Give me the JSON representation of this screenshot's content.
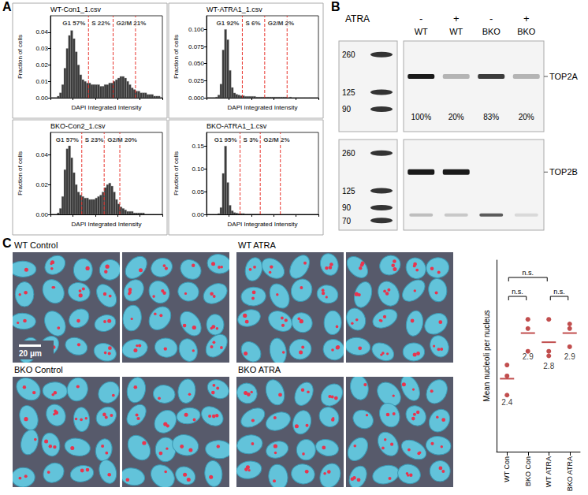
{
  "panel_letters": [
    "A",
    "B",
    "C"
  ],
  "chart_data": [
    {
      "type": "histogram",
      "title": "WT-Con1_1.csv",
      "xlabel": "DAPI Integrated Intensity",
      "ylabel": "Fraction of cells",
      "bins": [
        0,
        1,
        2,
        3,
        4,
        5,
        6,
        7,
        8,
        9,
        10,
        11,
        12,
        13,
        14,
        15,
        16,
        17,
        18,
        19,
        20,
        21,
        22,
        23,
        24,
        25,
        26,
        27,
        28,
        29,
        30,
        31,
        32,
        33,
        34,
        35,
        36,
        37,
        38,
        39,
        40,
        41,
        42,
        43,
        44,
        45,
        46,
        47,
        48,
        49,
        50
      ],
      "values": [
        0,
        0,
        0,
        0.001,
        0.003,
        0.008,
        0.018,
        0.03,
        0.038,
        0.041,
        0.036,
        0.028,
        0.02,
        0.014,
        0.011,
        0.01,
        0.009,
        0.009,
        0.008,
        0.008,
        0.008,
        0.008,
        0.007,
        0.007,
        0.008,
        0.008,
        0.009,
        0.009,
        0.01,
        0.011,
        0.012,
        0.013,
        0.013,
        0.012,
        0.01,
        0.008,
        0.006,
        0.005,
        0.004,
        0.004,
        0.003,
        0.003,
        0.003,
        0.002,
        0.002,
        0.002,
        0.001,
        0.001,
        0.001,
        0
      ],
      "color": "#3a3a3a",
      "xlim": [
        0,
        50
      ],
      "xticks": [
        0,
        10,
        20,
        30,
        40,
        50
      ],
      "ylim": [
        0,
        0.05
      ],
      "yticks": [
        {
          "value": 0,
          "label": "0.00"
        },
        0.01,
        0.02,
        0.03,
        0.04
      ],
      "tick_labels": "y",
      "grid": false,
      "gates": {
        "x": [
          17,
          28,
          38
        ],
        "color": "#e8352e",
        "line_style": "dashed"
      },
      "annotations": [
        "G1 57%",
        "S 22%",
        "G2/M 21%"
      ]
    },
    {
      "type": "histogram",
      "title": "WT-ATRA1_1.csv",
      "xlabel": "DAPI Integrated Intensity",
      "ylabel": "Fraction of cells",
      "bins": [
        0,
        1,
        2,
        3,
        4,
        5,
        6,
        7,
        8,
        9,
        10,
        11,
        12,
        13,
        14,
        15,
        16,
        17,
        18,
        19,
        20,
        21,
        22,
        23,
        24,
        25,
        26,
        27,
        28,
        29,
        30,
        31,
        32,
        33,
        34,
        35,
        36,
        37,
        38,
        39,
        40,
        41,
        42,
        43,
        44,
        45,
        46,
        47,
        48,
        49,
        50
      ],
      "values": [
        0,
        0,
        0,
        0,
        0.001,
        0.004,
        0.02,
        0.07,
        0.1,
        0.085,
        0.04,
        0.015,
        0.007,
        0.005,
        0.004,
        0.003,
        0.003,
        0.002,
        0.002,
        0.002,
        0.002,
        0.002,
        0.001,
        0.001,
        0.001,
        0.001,
        0.001,
        0.001,
        0.001,
        0.001,
        0.001,
        0.001,
        0.001,
        0.001,
        0.001,
        0.001,
        0,
        0.001,
        0,
        0,
        0,
        0,
        0,
        0,
        0,
        0,
        0,
        0,
        0,
        0
      ],
      "color": "#3a3a3a",
      "xlim": [
        0,
        50
      ],
      "xticks": [
        0,
        10,
        20,
        30,
        40,
        50
      ],
      "ylim": [
        0,
        0.12
      ],
      "yticks": [
        {
          "value": 0,
          "label": "0.000"
        },
        0.025,
        {
          "value": 0.05,
          "label": "0.050"
        },
        0.075,
        {
          "value": 0.1,
          "label": "0.100"
        }
      ],
      "tick_labels": "y",
      "grid": false,
      "gates": {
        "x": [
          16,
          26,
          36
        ],
        "color": "#e8352e",
        "line_style": "dashed"
      },
      "annotations": [
        "G1 92%",
        "S 6%",
        "G2/M 2%"
      ]
    },
    {
      "type": "histogram",
      "title": "BKO-Con2_1.csv",
      "xlabel": "DAPI Integrated Intensity",
      "ylabel": "Fraction of cells",
      "bins": [
        0,
        1,
        2,
        3,
        4,
        5,
        6,
        7,
        8,
        9,
        10,
        11,
        12,
        13,
        14,
        15,
        16,
        17,
        18,
        19,
        20,
        21,
        22,
        23,
        24,
        25,
        26,
        27,
        28,
        29,
        30,
        31,
        32,
        33,
        34,
        35,
        36,
        37,
        38,
        39,
        40,
        41,
        42,
        43,
        44,
        45,
        46,
        47,
        48,
        49,
        50
      ],
      "values": [
        0,
        0,
        0,
        0.001,
        0.004,
        0.012,
        0.03,
        0.044,
        0.046,
        0.038,
        0.028,
        0.02,
        0.015,
        0.013,
        0.012,
        0.011,
        0.011,
        0.01,
        0.01,
        0.01,
        0.011,
        0.012,
        0.013,
        0.015,
        0.018,
        0.02,
        0.021,
        0.019,
        0.015,
        0.01,
        0.007,
        0.005,
        0.004,
        0.003,
        0.002,
        0.002,
        0.002,
        0.001,
        0.001,
        0.001,
        0.001,
        0.001,
        0,
        0,
        0,
        0,
        0,
        0,
        0,
        0
      ],
      "color": "#3a3a3a",
      "xlim": [
        0,
        50
      ],
      "xticks": [
        0,
        10,
        20,
        30,
        40,
        50
      ],
      "ylim": [
        0,
        0.055
      ],
      "yticks": [
        {
          "value": 0,
          "label": "0.00"
        },
        0.02,
        0.04
      ],
      "tick_labels": "y",
      "grid": false,
      "gates": {
        "x": [
          14,
          24,
          31
        ],
        "color": "#e8352e",
        "line_style": "dashed"
      },
      "annotations": [
        "G1 57%",
        "S 23%",
        "G2/M 20%"
      ]
    },
    {
      "type": "histogram",
      "title": "BKO-ATRA1_1.csv",
      "xlabel": "DAPI Integrated Intensity",
      "ylabel": "Fraction of cells",
      "bins": [
        0,
        1,
        2,
        3,
        4,
        5,
        6,
        7,
        8,
        9,
        10,
        11,
        12,
        13,
        14,
        15,
        16,
        17,
        18,
        19,
        20,
        21,
        22,
        23,
        24,
        25,
        26,
        27,
        28,
        29,
        30,
        31,
        32,
        33,
        34,
        35,
        36,
        37,
        38,
        39,
        40,
        41,
        42,
        43,
        44,
        45,
        46,
        47,
        48,
        49,
        50
      ],
      "values": [
        0,
        0,
        0,
        0,
        0,
        0.002,
        0.015,
        0.09,
        0.15,
        0.07,
        0.02,
        0.008,
        0.004,
        0.003,
        0.002,
        0.002,
        0.002,
        0.001,
        0.001,
        0.001,
        0.001,
        0.001,
        0.001,
        0.001,
        0,
        0,
        0,
        0,
        0,
        0,
        0,
        0,
        0,
        0,
        0,
        0,
        0,
        0,
        0,
        0,
        0,
        0,
        0,
        0,
        0,
        0,
        0,
        0,
        0,
        0
      ],
      "color": "#3a3a3a",
      "xlim": [
        0,
        50
      ],
      "xticks": [
        0,
        10,
        20,
        30,
        40,
        50
      ],
      "ylim": [
        0,
        0.18
      ],
      "yticks": [
        {
          "value": 0,
          "label": "0.00"
        },
        0.05,
        {
          "value": 0.1,
          "label": "0.10"
        },
        0.15
      ],
      "tick_labels": "y",
      "grid": false,
      "gates": {
        "x": [
          15,
          24,
          33
        ],
        "color": "#e8352e",
        "line_style": "dashed"
      },
      "annotations": [
        "G1 95%",
        "S 3%",
        "G2/M 2%"
      ]
    },
    {
      "type": "scatter",
      "ylabel": "Mean nucleoli per nucleus",
      "categories": [
        "WT Con",
        "BKO Con",
        "WT ATRA",
        "BKO ATRA"
      ],
      "values": [
        [
          2.22,
          2.43,
          2.55
        ],
        [
          2.7,
          2.95,
          3.05
        ],
        [
          2.65,
          2.7,
          3.05
        ],
        [
          2.75,
          2.95,
          3.0
        ]
      ],
      "means": [
        2.4,
        2.9,
        2.8,
        2.9
      ],
      "color": "#b22222",
      "ylim": [
        1.6,
        3.7
      ],
      "tick_labels": "x",
      "grid": false,
      "comparisons": [
        {
          "pair": [
            "WT Con",
            "BKO Con"
          ],
          "label": "n.s."
        },
        {
          "pair": [
            "WT Con",
            "WT ATRA"
          ],
          "label": "n.s."
        },
        {
          "pair": [
            "WT ATRA",
            "BKO ATRA"
          ],
          "label": "n.s."
        }
      ]
    }
  ],
  "western_blot": {
    "treatment_label": "ATRA",
    "lanes": [
      {
        "treatment": "-",
        "genotype": "WT"
      },
      {
        "treatment": "+",
        "genotype": "WT"
      },
      {
        "treatment": "-",
        "genotype": "BKO"
      },
      {
        "treatment": "+",
        "genotype": "BKO"
      }
    ],
    "blots": [
      {
        "target": "TOP2A",
        "markers": [
          260,
          125,
          90
        ],
        "quantification": [
          100,
          20,
          83,
          20
        ],
        "value_labels": [
          "100%",
          "20%",
          "83%",
          "20%"
        ]
      },
      {
        "target": "TOP2B",
        "markers": [
          260,
          125,
          90,
          70
        ]
      }
    ]
  },
  "micrographs": {
    "panels": [
      {
        "label": "WT Control"
      },
      {
        "label": "WT ATRA"
      },
      {
        "label": "BKO Control"
      },
      {
        "label": "BKO ATRA"
      }
    ],
    "scale_bar": "20 μm"
  }
}
